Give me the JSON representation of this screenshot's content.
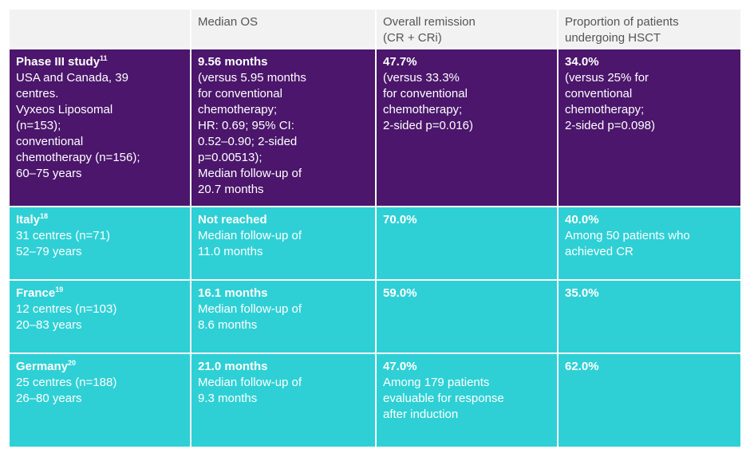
{
  "header": {
    "columns": [
      [
        "Median OS"
      ],
      [
        "Overall remission",
        "(CR + CRi)"
      ],
      [
        "Proportion of patients",
        "undergoing HSCT"
      ]
    ]
  },
  "rows": [
    {
      "study": {
        "name": "Phase III study",
        "ref": "11",
        "lines": [
          "USA and Canada, 39",
          "centres.",
          "Vyxeos Liposomal",
          "(n=153);",
          "conventional",
          "chemotherapy (n=156);",
          "60–75 years"
        ]
      },
      "cells": [
        {
          "title": "9.56 months",
          "lines": [
            "(versus 5.95 months",
            "for conventional",
            "chemotherapy;",
            "HR: 0.69; 95% CI:",
            "0.52–0.90; 2-sided",
            "p=0.00513);",
            "Median follow-up of",
            "20.7 months"
          ]
        },
        {
          "title": "47.7%",
          "lines": [
            "(versus 33.3%",
            "for conventional",
            "chemotherapy;",
            "2-sided p=0.016)"
          ]
        },
        {
          "title": "34.0%",
          "lines": [
            "(versus 25% for",
            "conventional",
            "chemotherapy;",
            "2-sided p=0.098)"
          ]
        }
      ]
    },
    {
      "study": {
        "name": "Italy",
        "ref": "18",
        "lines": [
          "31 centres (n=71)",
          "52–79 years"
        ]
      },
      "cells": [
        {
          "title": "Not reached",
          "lines": [
            "Median follow-up of",
            "11.0 months"
          ]
        },
        {
          "title": "70.0%",
          "lines": []
        },
        {
          "title": "40.0%",
          "lines": [
            "Among 50 patients who",
            "achieved CR"
          ]
        }
      ]
    },
    {
      "study": {
        "name": "France",
        "ref": "19",
        "lines": [
          "12 centres (n=103)",
          "20–83 years"
        ]
      },
      "cells": [
        {
          "title": "16.1 months",
          "lines": [
            "Median follow-up of",
            "8.6 months"
          ]
        },
        {
          "title": "59.0%",
          "lines": []
        },
        {
          "title": "35.0%",
          "lines": []
        }
      ]
    },
    {
      "study": {
        "name": "Germany",
        "ref": "20",
        "lines": [
          "25 centres (n=188)",
          "26–80 years"
        ]
      },
      "cells": [
        {
          "title": "21.0 months",
          "lines": [
            "Median follow-up of",
            "9.3 months"
          ]
        },
        {
          "title": "47.0%",
          "lines": [
            "Among 179 patients",
            "evaluable for response",
            "after induction"
          ]
        },
        {
          "title": "62.0%",
          "lines": []
        }
      ]
    }
  ]
}
